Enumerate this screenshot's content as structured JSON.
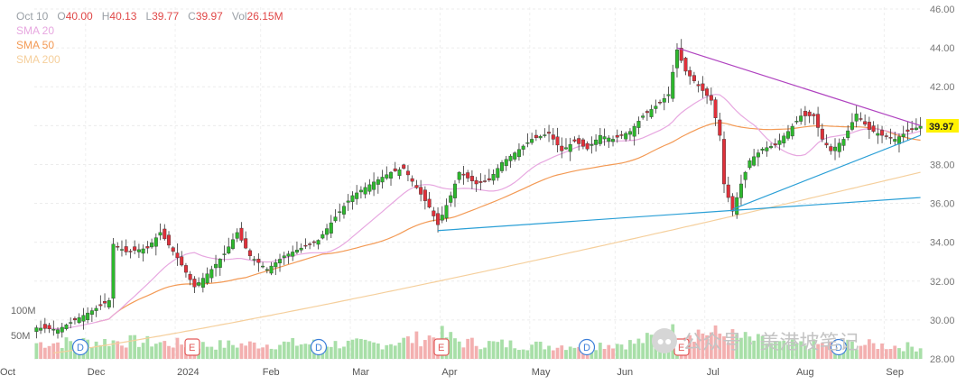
{
  "legend": {
    "date": "Oct 10",
    "o_label": "O",
    "o_value": "40.00",
    "h_label": "H",
    "h_value": "40.13",
    "l_label": "L",
    "l_value": "39.77",
    "c_label": "C",
    "c_value": "39.97",
    "vol_label": "Vol",
    "vol_value": "26.15M",
    "sma20": "SMA 20",
    "sma50": "SMA 50",
    "sma200": "SMA 200"
  },
  "watermark": {
    "text": "公众号 · 美港坡笔记"
  },
  "colors": {
    "up": "#2db82d",
    "down": "#e0303a",
    "sma20": "#e7a7e0",
    "sma50": "#f39a55",
    "sma200": "#f5cf9c",
    "trend_upper": "#b044c0",
    "trend_lower": "#2a9fd6",
    "price_label": "#fff200"
  },
  "chart_data": {
    "type": "candlestick",
    "y_axis": {
      "ticks": [
        "46.00",
        "44.00",
        "42.00",
        "40.00",
        "38.00",
        "36.00",
        "34.00",
        "32.00",
        "30.00",
        "28.00"
      ],
      "ylim": [
        28,
        46
      ],
      "side": "right"
    },
    "x_axis": {
      "labels": [
        "Dec",
        "2024",
        "Feb",
        "Mar",
        "Apr",
        "May",
        "Jun",
        "Jul",
        "Aug",
        "Sep",
        "Oct"
      ]
    },
    "volume_axis": {
      "labels": [
        "100M",
        "50M"
      ]
    },
    "last_price": "39.97",
    "events": [
      {
        "label": "D",
        "month_index": 0
      },
      {
        "label": "E",
        "month_index": 1
      },
      {
        "label": "D",
        "month_index": 3
      },
      {
        "label": "E",
        "month_index": 4
      },
      {
        "label": "D",
        "month_index": 6
      },
      {
        "label": "E",
        "month_index": 7
      },
      {
        "label": "D",
        "month_index": 9
      }
    ],
    "price_anchors": [
      [
        0,
        29.6
      ],
      [
        5,
        29.5
      ],
      [
        9,
        30.0
      ],
      [
        14,
        30.6
      ],
      [
        17,
        31.0
      ],
      [
        18,
        33.9
      ],
      [
        21,
        33.5
      ],
      [
        26,
        33.7
      ],
      [
        29,
        34.5
      ],
      [
        33,
        33.2
      ],
      [
        37,
        31.7
      ],
      [
        41,
        32.6
      ],
      [
        44,
        33.4
      ],
      [
        47,
        34.5
      ],
      [
        50,
        33.3
      ],
      [
        54,
        32.6
      ],
      [
        58,
        33.3
      ],
      [
        63,
        33.8
      ],
      [
        66,
        34.1
      ],
      [
        70,
        35.3
      ],
      [
        74,
        36.4
      ],
      [
        79,
        37.1
      ],
      [
        83,
        37.6
      ],
      [
        86,
        37.8
      ],
      [
        89,
        36.8
      ],
      [
        92,
        35.8
      ],
      [
        94,
        34.9
      ],
      [
        97,
        36.4
      ],
      [
        99,
        37.6
      ],
      [
        103,
        37.0
      ],
      [
        106,
        37.2
      ],
      [
        109,
        38.1
      ],
      [
        112,
        38.6
      ],
      [
        116,
        39.3
      ],
      [
        120,
        39.6
      ],
      [
        123,
        38.7
      ],
      [
        126,
        39.2
      ],
      [
        129,
        38.8
      ],
      [
        132,
        39.5
      ],
      [
        135,
        39.3
      ],
      [
        139,
        39.7
      ],
      [
        142,
        40.5
      ],
      [
        145,
        41.0
      ],
      [
        148,
        41.6
      ],
      [
        150,
        43.9
      ],
      [
        152,
        42.8
      ],
      [
        154,
        42.3
      ],
      [
        156,
        41.8
      ],
      [
        158,
        41.3
      ],
      [
        160,
        39.5
      ],
      [
        161,
        37.0
      ],
      [
        163,
        35.6
      ],
      [
        165,
        37.0
      ],
      [
        167,
        38.2
      ],
      [
        170,
        38.8
      ],
      [
        173,
        39.0
      ],
      [
        176,
        39.7
      ],
      [
        179,
        40.5
      ],
      [
        182,
        40.5
      ],
      [
        184,
        39.3
      ],
      [
        186,
        38.7
      ],
      [
        189,
        39.3
      ],
      [
        192,
        40.6
      ],
      [
        195,
        39.8
      ],
      [
        198,
        39.5
      ],
      [
        201,
        39.3
      ],
      [
        204,
        39.7
      ],
      [
        207,
        39.97
      ]
    ],
    "volume_anchors": [
      [
        0,
        30
      ],
      [
        20,
        34
      ],
      [
        40,
        26
      ],
      [
        60,
        29
      ],
      [
        80,
        28
      ],
      [
        95,
        45
      ],
      [
        100,
        31
      ],
      [
        120,
        25
      ],
      [
        140,
        30
      ],
      [
        151,
        55
      ],
      [
        160,
        47
      ],
      [
        175,
        26
      ],
      [
        192,
        28
      ],
      [
        207,
        22
      ]
    ],
    "trendlines": [
      {
        "name": "upper",
        "from": [
          150,
          44.0
        ],
        "to": [
          207,
          40.0
        ]
      },
      {
        "name": "lower_flat",
        "from": [
          94,
          34.6
        ],
        "to": [
          207,
          36.3
        ]
      },
      {
        "name": "lower_rising",
        "from": [
          163,
          35.7
        ],
        "to": [
          207,
          39.5
        ]
      }
    ]
  }
}
